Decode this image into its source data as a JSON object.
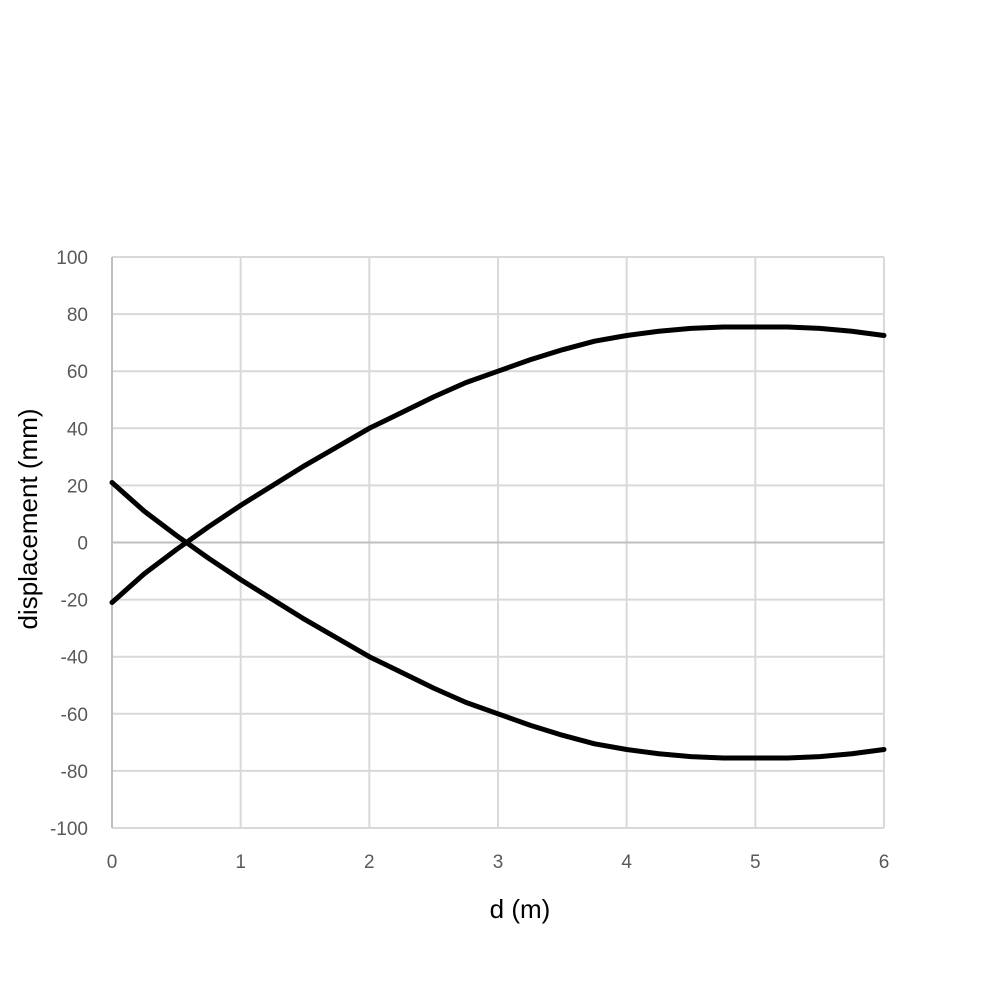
{
  "chart_data": {
    "type": "line",
    "title": "",
    "xlabel": "d (m)",
    "ylabel": "displacement (mm)",
    "xlim": [
      0,
      6
    ],
    "ylim": [
      -100,
      100
    ],
    "x_ticks": [
      0,
      1,
      2,
      3,
      4,
      5,
      6
    ],
    "y_ticks": [
      100,
      80,
      60,
      40,
      20,
      0,
      -20,
      -40,
      -60,
      -80,
      -100
    ],
    "grid": true,
    "legend": "none",
    "line_color": "#000000",
    "grid_color": "#d9d9d9",
    "series": [
      {
        "x": [
          0,
          0.25,
          0.5,
          0.75,
          1,
          1.25,
          1.5,
          1.75,
          2,
          2.25,
          2.5,
          2.75,
          3,
          3.25,
          3.5,
          3.75,
          4,
          4.25,
          4.5,
          4.75,
          5,
          5.25,
          5.5,
          5.75,
          6
        ],
        "values": [
          21,
          11,
          2.5,
          -5.5,
          -13,
          -20,
          -27,
          -33.5,
          -40,
          -45.5,
          -51,
          -56,
          -60,
          -64,
          -67.5,
          -70.5,
          -72.5,
          -74,
          -75,
          -75.5,
          -75.5,
          -75.5,
          -75,
          -74,
          -72.5
        ]
      },
      {
        "x": [
          0,
          0.25,
          0.5,
          0.75,
          1,
          1.25,
          1.5,
          1.75,
          2,
          2.25,
          2.5,
          2.75,
          3,
          3.25,
          3.5,
          3.75,
          4,
          4.25,
          4.5,
          4.75,
          5,
          5.25,
          5.5,
          5.75,
          6
        ],
        "values": [
          -21,
          -11,
          -2.5,
          5.5,
          13,
          20,
          27,
          33.5,
          40,
          45.5,
          51,
          56,
          60,
          64,
          67.5,
          70.5,
          72.5,
          74,
          75,
          75.5,
          75.5,
          75.5,
          75,
          74,
          72.5
        ]
      }
    ]
  }
}
